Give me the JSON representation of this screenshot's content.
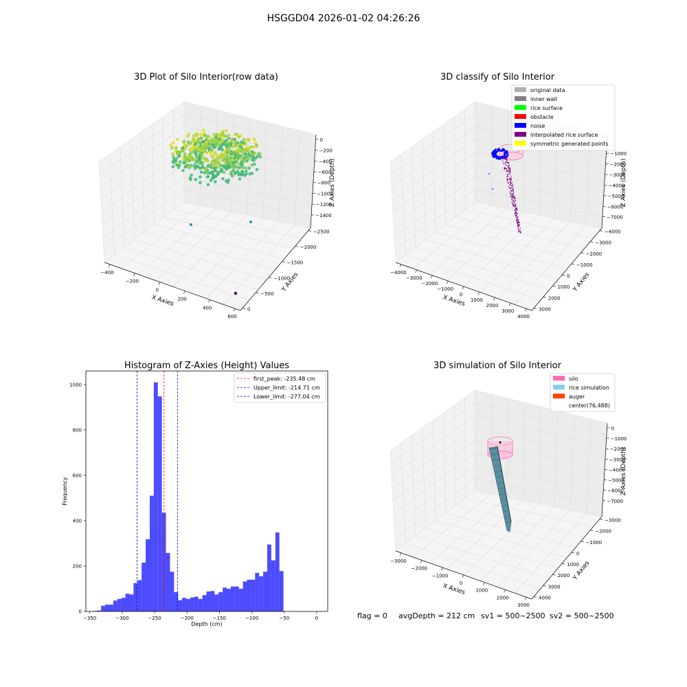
{
  "suptitle": "HSGGD04 2026-01-02 04:26:26",
  "panels": {
    "raw": {
      "title": "3D Plot of Silo Interior(row data)",
      "xlabel": "X Axies",
      "ylabel": "Y Axies",
      "zlabel": "Z Axies (Depth)",
      "xticks": [
        "−400",
        "−200",
        "0",
        "200",
        "400",
        "600"
      ],
      "yticks": [
        "0",
        "−500",
        "−1000",
        "−1500",
        "−2000",
        "−2500"
      ],
      "zticks": [
        "0",
        "−200",
        "−400",
        "−600",
        "−800",
        "−1000",
        "−1200",
        "−1400"
      ]
    },
    "classify": {
      "title": "3D classify of Silo Interior",
      "xlabel": "X Axies",
      "ylabel": "Y Axies",
      "zlabel": "Z Axies (Depth)",
      "xticks": [
        "−4000",
        "−3000",
        "−2000",
        "−1000",
        "0",
        "1000",
        "2000",
        "3000",
        "4000"
      ],
      "yticks": [
        "3000",
        "2000",
        "1000",
        "0",
        "−1000",
        "−2000",
        "−3000",
        "−4000"
      ],
      "zticks": [
        "−1000",
        "−2000",
        "−3000",
        "−4000",
        "−5000",
        "−6000",
        "−7000"
      ],
      "legend": [
        {
          "label": "original data",
          "color": "#b0b0b0"
        },
        {
          "label": "inner wall",
          "color": "#808080"
        },
        {
          "label": "rice surface",
          "color": "#00ff00"
        },
        {
          "label": "obstacle",
          "color": "#ff0000"
        },
        {
          "label": "noise",
          "color": "#0000ff"
        },
        {
          "label": "interpolated rice surface",
          "color": "#800080"
        },
        {
          "label": "symmetric generated points",
          "color": "#ffff00"
        }
      ]
    },
    "simulation": {
      "title": "3D simulation of Silo Interior",
      "xlabel": "X Axies",
      "ylabel": "Y Axies",
      "zlabel": "Z Axies (Depth)",
      "xticks": [
        "−3000",
        "−2000",
        "−1000",
        "0",
        "1000",
        "2000",
        "3000"
      ],
      "yticks": [
        "4000",
        "3000",
        "2000",
        "1000",
        "0",
        "−1000",
        "−2000",
        "−3000"
      ],
      "zticks": [
        "0",
        "−1000",
        "−2000",
        "−3000",
        "−4000",
        "−5000",
        "−6000",
        "−7000"
      ],
      "legend": [
        {
          "label": "silo",
          "color": "#ff69b4"
        },
        {
          "label": "rice simulation",
          "color": "#87ceeb"
        },
        {
          "label": "auger",
          "color": "#ff4500"
        },
        {
          "label": "center(76,488)",
          "color": ""
        }
      ]
    }
  },
  "status": {
    "flag": "flag = 0",
    "avg": "avgDepth = 212 cm",
    "sv1": "sv1 = 500~2500",
    "sv2": "sv2 = 500~2500"
  },
  "chart_data": {
    "type": "bar",
    "title": "Histogram of Z-Axies (Height) Values",
    "xlabel": "Depth (cm)",
    "ylabel": "Frequency",
    "xlim": [
      -356,
      17
    ],
    "ylim": [
      0,
      1060
    ],
    "xticks": [
      -350,
      -300,
      -250,
      -200,
      -150,
      -100,
      -50,
      0
    ],
    "yticks": [
      0,
      200,
      400,
      600,
      800,
      1000
    ],
    "bin_start": -345,
    "bin_width": 6.25,
    "color": "#0000ff",
    "values": [
      2,
      4,
      25,
      30,
      30,
      48,
      55,
      60,
      78,
      75,
      125,
      138,
      215,
      318,
      510,
      1010,
      948,
      435,
      258,
      175,
      85,
      50,
      60,
      55,
      62,
      65,
      55,
      72,
      88,
      90,
      75,
      85,
      105,
      100,
      110,
      110,
      100,
      132,
      140,
      140,
      170,
      155,
      175,
      295,
      225,
      348,
      178
    ],
    "lines": [
      {
        "label": "first_peak: -235.48 cm",
        "x": -235.48,
        "color": "#ff0000"
      },
      {
        "label": "Upper_limit: -214.71 cm",
        "x": -214.71,
        "color": "#0000cc"
      },
      {
        "label": "Lower_limit: -277.04 cm",
        "x": -277.04,
        "color": "#0000cc"
      }
    ]
  }
}
